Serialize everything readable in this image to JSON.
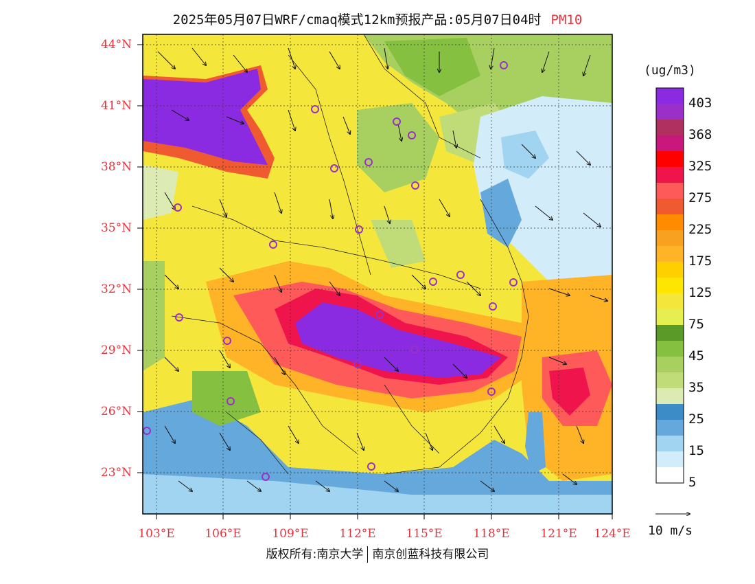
{
  "title": "2025年05月07日WRF/cmaq模式12km预报产品:05月07日04时",
  "pollutant": "PM10",
  "unit": "(ug/m3)",
  "legend": [
    {
      "label": "403",
      "color": "#8a2be2"
    },
    {
      "label": "",
      "color": "#9b30c8"
    },
    {
      "label": "368",
      "color": "#b03060"
    },
    {
      "label": "",
      "color": "#c8187c"
    },
    {
      "label": "325",
      "color": "#ff0000"
    },
    {
      "label": "",
      "color": "#f0144c"
    },
    {
      "label": "275",
      "color": "#ff5a5a"
    },
    {
      "label": "",
      "color": "#f05a30"
    },
    {
      "label": "225",
      "color": "#ff8c00"
    },
    {
      "label": "",
      "color": "#f8a020"
    },
    {
      "label": "175",
      "color": "#ffb428"
    },
    {
      "label": "",
      "color": "#ffd000"
    },
    {
      "label": "125",
      "color": "#ffe600"
    },
    {
      "label": "",
      "color": "#f5e63c"
    },
    {
      "label": "75",
      "color": "#e6ef50"
    },
    {
      "label": "",
      "color": "#5a9a28"
    },
    {
      "label": "45",
      "color": "#86c040"
    },
    {
      "label": "",
      "color": "#a8d060"
    },
    {
      "label": "35",
      "color": "#c0dc78"
    },
    {
      "label": "",
      "color": "#dcebb4"
    },
    {
      "label": "25",
      "color": "#3c8cc8"
    },
    {
      "label": "",
      "color": "#64a8dc"
    },
    {
      "label": "15",
      "color": "#a0d4f0"
    },
    {
      "label": "",
      "color": "#d2ecfa"
    },
    {
      "label": "5",
      "color": "#ffffff"
    }
  ],
  "lat_labels": [
    "44°N",
    "41°N",
    "38°N",
    "35°N",
    "32°N",
    "29°N",
    "26°N",
    "23°N"
  ],
  "lon_labels": [
    "103°E",
    "106°E",
    "109°E",
    "112°E",
    "115°E",
    "118°E",
    "121°E",
    "124°E"
  ],
  "vector_ref": "10 m/s",
  "credit": {
    "left": "版权所有:南京大学",
    "right": "南京创蓝科技有限公司"
  }
}
